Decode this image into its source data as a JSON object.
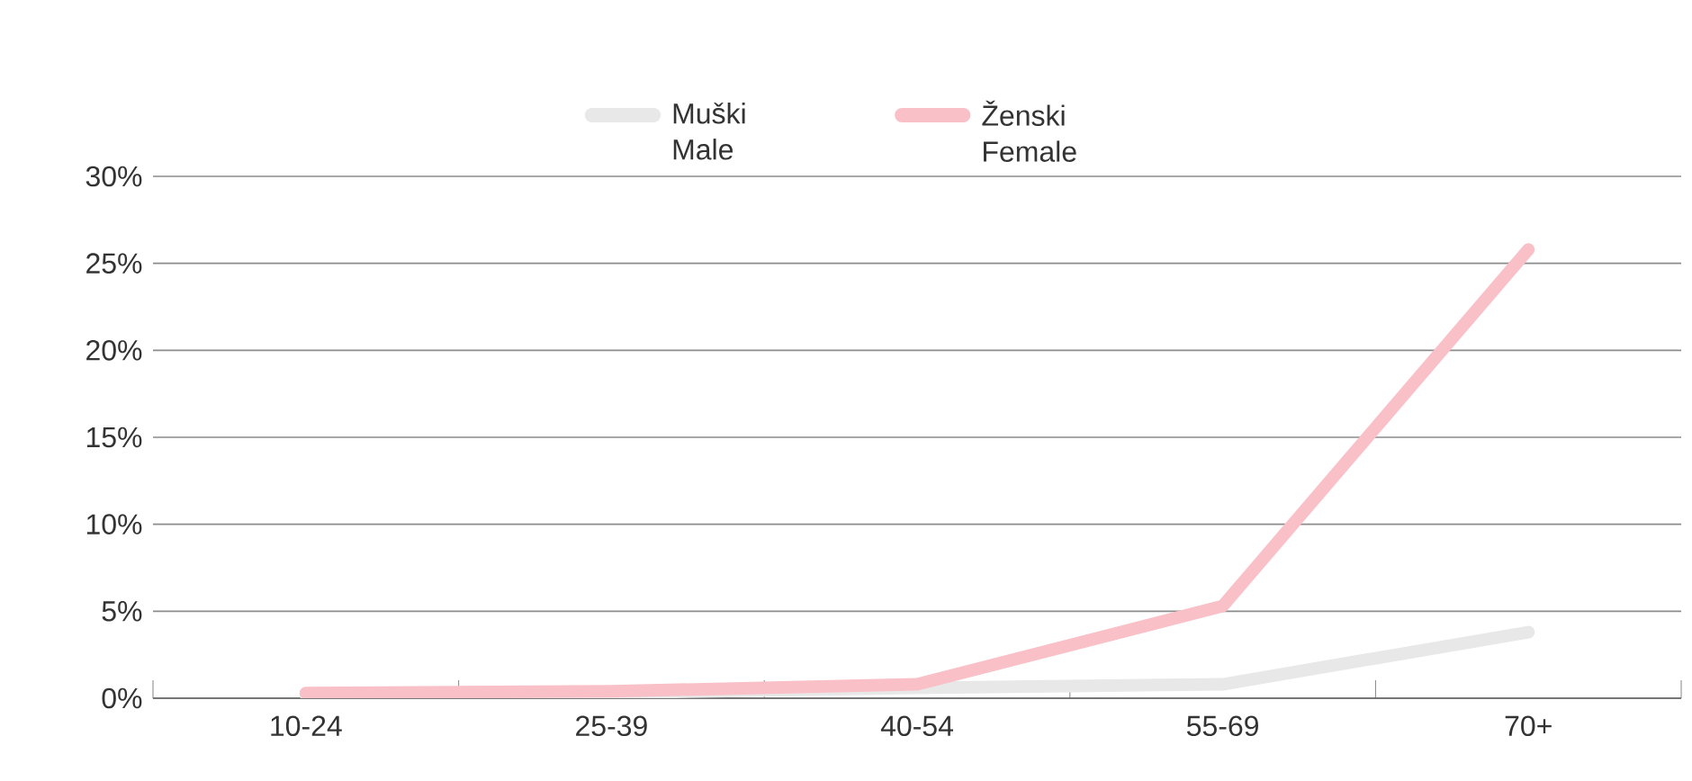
{
  "chart_data": {
    "type": "line",
    "categories": [
      "10-24",
      "25-39",
      "40-54",
      "55-69",
      "70+"
    ],
    "series": [
      {
        "name": "Muški Male",
        "color": "#e8e8e8",
        "values": [
          0.2,
          0.3,
          0.6,
          0.8,
          3.8
        ]
      },
      {
        "name": "Ženski Female",
        "color": "#f9c0c7",
        "values": [
          0.3,
          0.4,
          0.8,
          5.3,
          25.8
        ]
      }
    ],
    "ylim": [
      0,
      30
    ],
    "yticks": [
      {
        "value": 0,
        "label": "0%"
      },
      {
        "value": 5,
        "label": "5%"
      },
      {
        "value": 10,
        "label": "10%"
      },
      {
        "value": 15,
        "label": "15%"
      },
      {
        "value": 20,
        "label": "20%"
      },
      {
        "value": 25,
        "label": "25%"
      },
      {
        "value": 30,
        "label": "30%"
      }
    ],
    "grid": "y",
    "legend": "top",
    "marker": "none",
    "line_style": "solid"
  }
}
